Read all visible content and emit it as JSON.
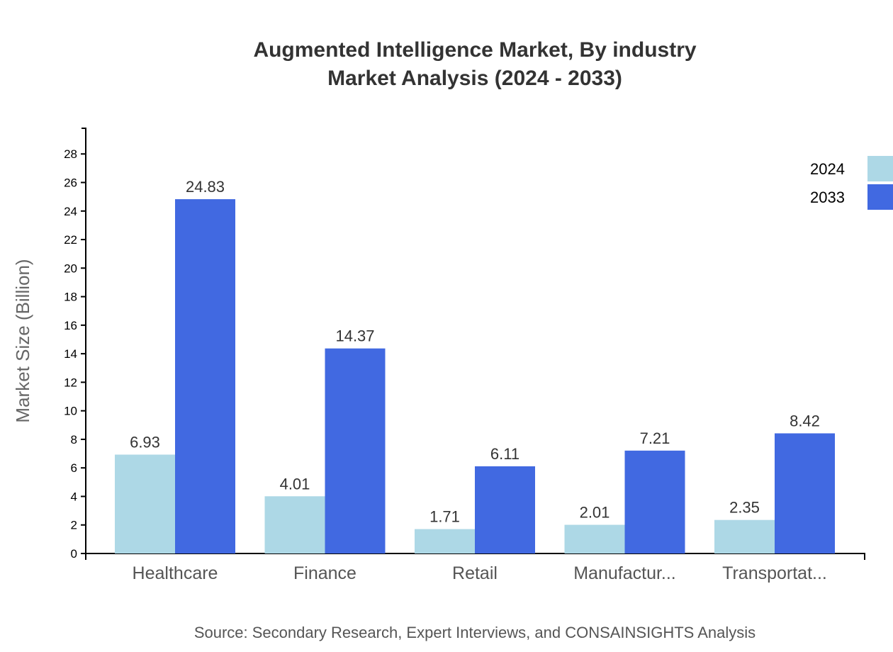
{
  "chart_data": {
    "type": "bar",
    "title": "Augmented Intelligence Market, By industry",
    "subtitle": "Market Analysis (2024 - 2033)",
    "ylabel": "Market Size (Billion)",
    "xlabel": "",
    "ylim": [
      0,
      29.8
    ],
    "yticks": [
      0,
      2,
      4,
      6,
      8,
      10,
      12,
      14,
      16,
      18,
      20,
      22,
      24,
      26,
      28
    ],
    "categories": [
      "Healthcare",
      "Finance",
      "Retail",
      "Manufactur...",
      "Transportat..."
    ],
    "series": [
      {
        "name": "2024",
        "color": "#add8e6",
        "values": [
          6.93,
          4.01,
          1.71,
          2.01,
          2.35
        ]
      },
      {
        "name": "2033",
        "color": "#4169e1",
        "values": [
          24.83,
          14.37,
          6.11,
          7.21,
          8.42
        ]
      }
    ],
    "legend_position": "top-right",
    "grid": false,
    "source": "Source: Secondary Research, Expert Interviews, and CONSAINSIGHTS Analysis"
  }
}
